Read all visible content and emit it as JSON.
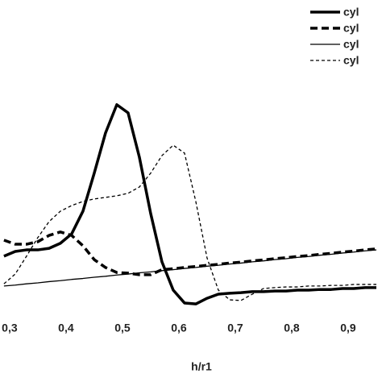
{
  "chart_data": {
    "type": "line",
    "x_label": "h/r1",
    "x": [
      0.29,
      0.31,
      0.33,
      0.35,
      0.37,
      0.39,
      0.41,
      0.43,
      0.45,
      0.47,
      0.49,
      0.51,
      0.53,
      0.55,
      0.57,
      0.59,
      0.61,
      0.63,
      0.65,
      0.67,
      0.69,
      0.71,
      0.73,
      0.75,
      0.77,
      0.79,
      0.81,
      0.83,
      0.85,
      0.87,
      0.89,
      0.91,
      0.93,
      0.95
    ],
    "xlim": [
      0.283,
      0.96
    ],
    "xticks": [
      {
        "value": 0.3,
        "label": "0,3"
      },
      {
        "value": 0.4,
        "label": "0,4"
      },
      {
        "value": 0.5,
        "label": "0,5"
      },
      {
        "value": 0.6,
        "label": "0,6"
      },
      {
        "value": 0.7,
        "label": "0,7"
      },
      {
        "value": 0.8,
        "label": "0,8"
      },
      {
        "value": 0.9,
        "label": "0,9"
      }
    ],
    "ylim": [
      0,
      100
    ],
    "legend": "top-right",
    "series": [
      {
        "name": "cyl",
        "color": "#000000",
        "line_style": "solid",
        "line_weight": "thick",
        "values": [
          18.5,
          20,
          20.5,
          20.5,
          21,
          22.6,
          25.6,
          32.8,
          44.9,
          57.7,
          66.7,
          64.1,
          50,
          32.1,
          16.7,
          7.7,
          3.6,
          3.3,
          5.1,
          6.4,
          6.7,
          6.9,
          7.2,
          7.2,
          7.4,
          7.4,
          7.7,
          7.7,
          7.9,
          7.9,
          8.2,
          8.2,
          8.5,
          8.5
        ]
      },
      {
        "name": "cyl",
        "color": "#000000",
        "line_style": "dashed",
        "line_weight": "thick",
        "values": [
          23.6,
          22.3,
          22.3,
          23.1,
          25.1,
          26.2,
          25.1,
          21.8,
          17.4,
          14.9,
          13.3,
          13.1,
          12.6,
          12.6,
          14.2,
          14.5,
          14.9,
          15.2,
          15.6,
          15.9,
          16.3,
          16.6,
          17.0,
          17.3,
          17.7,
          18.0,
          18.4,
          18.7,
          19.1,
          19.4,
          19.8,
          20.1,
          20.5,
          20.8
        ]
      },
      {
        "name": "cyl",
        "color": "#000000",
        "line_style": "solid",
        "line_weight": "thin",
        "values": [
          9.0,
          9.3,
          9.7,
          10.0,
          10.4,
          10.7,
          11.1,
          11.4,
          11.8,
          12.1,
          12.5,
          12.8,
          13.2,
          13.5,
          13.9,
          14.2,
          14.6,
          14.9,
          15.3,
          15.6,
          16.0,
          16.3,
          16.7,
          17.0,
          17.4,
          17.7,
          18.1,
          18.4,
          18.8,
          19.1,
          19.5,
          19.8,
          20.2,
          20.5
        ]
      },
      {
        "name": "cyl",
        "color": "#000000",
        "line_style": "dashed",
        "line_weight": "thin",
        "values": [
          9.7,
          12.8,
          18.5,
          24.4,
          29.5,
          32.8,
          34.6,
          35.9,
          36.7,
          37.2,
          37.7,
          38.5,
          40.5,
          44.9,
          50.5,
          53.8,
          51.3,
          35.9,
          17.9,
          7.7,
          4.6,
          4.4,
          6.4,
          8.2,
          8.5,
          8.7,
          8.7,
          9.0,
          9.0,
          9.2,
          9.2,
          9.5,
          9.5,
          9.5
        ]
      }
    ]
  }
}
